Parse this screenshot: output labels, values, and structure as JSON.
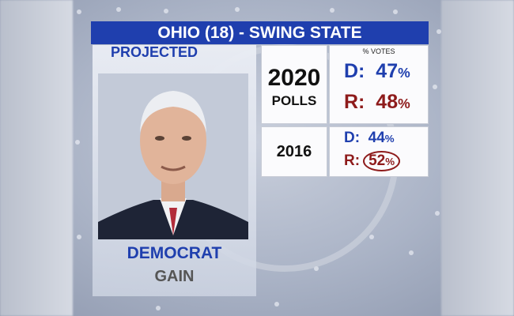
{
  "header": {
    "title": "OHIO (18)  - SWING STATE"
  },
  "candidate": {
    "status": "PROJECTED",
    "party": "DEMOCRAT",
    "result": "GAIN"
  },
  "polls_2020": {
    "year": "2020",
    "label": "POLLS",
    "caption": "% VOTES",
    "rows": [
      {
        "party": "D:",
        "value": 47,
        "unit": "%"
      },
      {
        "party": "R:",
        "value": 48,
        "unit": "%"
      }
    ]
  },
  "results_2016": {
    "year": "2016",
    "rows": [
      {
        "party": "D:",
        "value": 44,
        "unit": "%"
      },
      {
        "party": "R:",
        "value": 52,
        "unit": "%"
      }
    ]
  }
}
